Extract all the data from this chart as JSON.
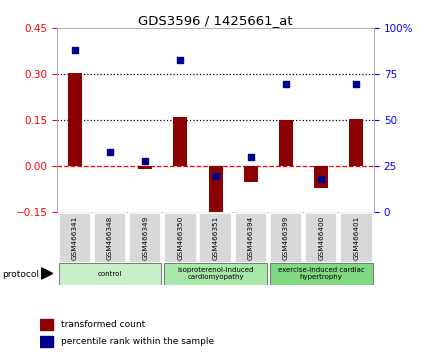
{
  "title": "GDS3596 / 1425661_at",
  "samples": [
    "GSM466341",
    "GSM466348",
    "GSM466349",
    "GSM466350",
    "GSM466351",
    "GSM466394",
    "GSM466399",
    "GSM466400",
    "GSM466401"
  ],
  "transformed_count": [
    0.305,
    0.0,
    -0.01,
    0.16,
    -0.18,
    -0.05,
    0.15,
    -0.07,
    0.155
  ],
  "percentile_rank": [
    88,
    33,
    28,
    83,
    20,
    30,
    70,
    18,
    70
  ],
  "groups": [
    {
      "label": "control",
      "indices": [
        0,
        1,
        2
      ],
      "color": "#c8f0c8"
    },
    {
      "label": "isoproterenol-induced\ncardiomyopathy",
      "indices": [
        3,
        4,
        5
      ],
      "color": "#a8e8a8"
    },
    {
      "label": "exercise-induced cardiac\nhypertrophy",
      "indices": [
        6,
        7,
        8
      ],
      "color": "#80d880"
    }
  ],
  "bar_color": "#8b0000",
  "dot_color": "#00008b",
  "left_ylim": [
    -0.15,
    0.45
  ],
  "right_ylim": [
    0,
    100
  ],
  "left_yticks": [
    -0.15,
    0.0,
    0.15,
    0.3,
    0.45
  ],
  "right_yticks": [
    0,
    25,
    50,
    75,
    100
  ],
  "hlines": [
    {
      "val": 0.0,
      "style": "dashed",
      "color": "red"
    },
    {
      "val": 0.15,
      "style": "dotted",
      "color": "black"
    },
    {
      "val": 0.3,
      "style": "dotted",
      "color": "black"
    }
  ],
  "legend_items": [
    "transformed count",
    "percentile rank within the sample"
  ],
  "protocol_label": "protocol",
  "background_color": "#ffffff",
  "bar_width": 0.4
}
